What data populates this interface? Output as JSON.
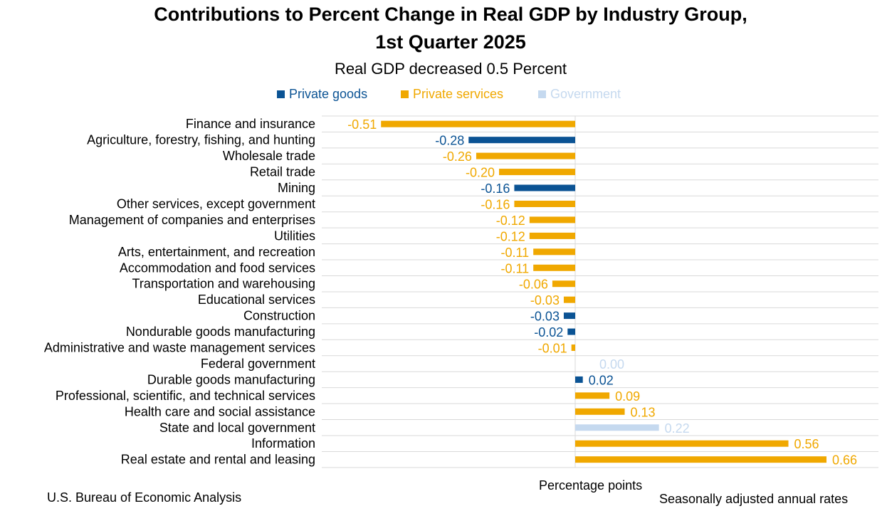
{
  "title_line1": "Contributions to Percent Change in Real GDP by Industry Group,",
  "title_line2": "1st Quarter 2025",
  "subtitle": "Real GDP decreased 0.5 Percent",
  "legend": [
    {
      "label": "Private goods",
      "color": "#0b5394"
    },
    {
      "label": "Private services",
      "color": "#f0a800"
    },
    {
      "label": "Government",
      "color": "#c5d9ef"
    }
  ],
  "x_axis_label": "Percentage points",
  "source": "U.S. Bureau of Economic Analysis",
  "note": "Seasonally adjusted annual rates",
  "chart_data": {
    "type": "bar",
    "orientation": "horizontal",
    "title": "Contributions to Percent Change in Real GDP by Industry Group, 1st Quarter 2025",
    "subtitle": "Real GDP decreased 0.5 Percent",
    "xlabel": "Percentage points",
    "xlim": [
      -0.8,
      0.8
    ],
    "grid": "horizontal",
    "categories": [
      "Finance and insurance",
      "Agriculture, forestry, fishing, and hunting",
      "Wholesale trade",
      "Retail trade",
      "Mining",
      "Other services, except government",
      "Management of companies and enterprises",
      "Utilities",
      "Arts, entertainment, and recreation",
      "Accommodation and food services",
      "Transportation and warehousing",
      "Educational services",
      "Construction",
      "Nondurable goods manufacturing",
      "Administrative and waste management services",
      "Federal government",
      "Durable goods manufacturing",
      "Professional, scientific, and technical services",
      "Health care and social assistance",
      "State and local government",
      "Information",
      "Real estate and rental and leasing"
    ],
    "values": [
      -0.51,
      -0.28,
      -0.26,
      -0.2,
      -0.16,
      -0.16,
      -0.12,
      -0.12,
      -0.11,
      -0.11,
      -0.06,
      -0.03,
      -0.03,
      -0.02,
      -0.01,
      0.0,
      0.02,
      0.09,
      0.13,
      0.22,
      0.56,
      0.66
    ],
    "labels": [
      "-0.51",
      "-0.28",
      "-0.26",
      "-0.20",
      "-0.16",
      "-0.16",
      "-0.12",
      "-0.12",
      "-0.11",
      "-0.11",
      "-0.06",
      "-0.03",
      "-0.03",
      "-0.02",
      "-0.01",
      "0.00",
      "0.02",
      "0.09",
      "0.13",
      "0.22",
      "0.56",
      "0.66"
    ],
    "groups": [
      "Private services",
      "Private goods",
      "Private services",
      "Private services",
      "Private goods",
      "Private services",
      "Private services",
      "Private services",
      "Private services",
      "Private services",
      "Private services",
      "Private services",
      "Private goods",
      "Private goods",
      "Private services",
      "Government",
      "Private goods",
      "Private services",
      "Private services",
      "Government",
      "Private services",
      "Private services"
    ]
  }
}
